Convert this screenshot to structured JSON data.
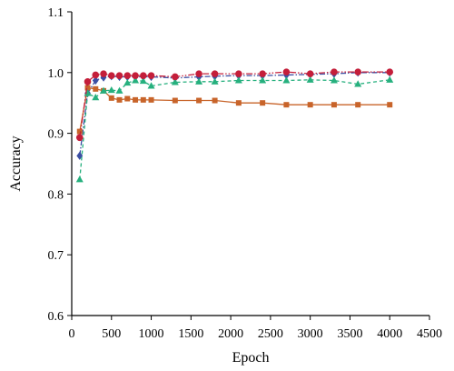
{
  "chart_data": {
    "type": "line",
    "xlabel": "Epoch",
    "ylabel": "Accuracy",
    "xlim": [
      0,
      4500
    ],
    "ylim": [
      0.6,
      1.1
    ],
    "xticks": [
      0,
      500,
      1000,
      1500,
      2000,
      2500,
      3000,
      3500,
      4000,
      4500
    ],
    "yticks": [
      0.6,
      0.7,
      0.8,
      0.9,
      1.0,
      1.1
    ],
    "xtick_labels": [
      "0",
      "500",
      "1000",
      "1500",
      "2000",
      "2500",
      "3000",
      "3500",
      "4000",
      "4500"
    ],
    "ytick_labels": [
      "0.6",
      "0.7",
      "0.8",
      "0.9",
      "1.0",
      "1.1"
    ],
    "grid": false,
    "series": [
      {
        "color": "#3b4ea3",
        "marker": "diamond",
        "dash": "6,2,1.5,2",
        "x": [
          100,
          200,
          300,
          400,
          500,
          600,
          700,
          800,
          900,
          1000,
          1300,
          1600,
          1800,
          2100,
          2400,
          2700,
          3000,
          3300,
          3600,
          4000
        ],
        "y": [
          0.863,
          0.966,
          0.987,
          0.992,
          0.994,
          0.993,
          0.993,
          0.993,
          0.993,
          0.993,
          0.991,
          0.993,
          0.994,
          0.995,
          0.995,
          0.996,
          0.997,
          0.998,
          1.0,
          1.0
        ]
      },
      {
        "color": "#c8642a",
        "marker": "square",
        "dash": "",
        "x": [
          100,
          200,
          300,
          400,
          500,
          600,
          700,
          800,
          900,
          1000,
          1300,
          1600,
          1800,
          2100,
          2400,
          2700,
          3000,
          3300,
          3600,
          4000
        ],
        "y": [
          0.903,
          0.975,
          0.973,
          0.97,
          0.958,
          0.955,
          0.957,
          0.955,
          0.955,
          0.955,
          0.954,
          0.954,
          0.954,
          0.95,
          0.95,
          0.947,
          0.947,
          0.947,
          0.947,
          0.947
        ]
      },
      {
        "color": "#26b07e",
        "marker": "triangle",
        "dash": "4,3",
        "x": [
          100,
          200,
          300,
          400,
          500,
          600,
          700,
          800,
          900,
          1000,
          1300,
          1600,
          1800,
          2100,
          2400,
          2700,
          3000,
          3300,
          3600,
          4000
        ],
        "y": [
          0.824,
          0.966,
          0.959,
          0.97,
          0.971,
          0.97,
          0.983,
          0.987,
          0.986,
          0.978,
          0.984,
          0.985,
          0.985,
          0.987,
          0.987,
          0.987,
          0.988,
          0.987,
          0.981,
          0.988
        ]
      },
      {
        "color": "#c41e3a",
        "marker": "circle",
        "dash": "7,2,1.5,2,1.5,2",
        "x": [
          100,
          200,
          300,
          400,
          500,
          600,
          700,
          800,
          900,
          1000,
          1300,
          1600,
          1800,
          2100,
          2400,
          2700,
          3000,
          3300,
          3600,
          4000
        ],
        "y": [
          0.893,
          0.985,
          0.996,
          0.998,
          0.995,
          0.995,
          0.995,
          0.995,
          0.995,
          0.995,
          0.993,
          0.998,
          0.998,
          0.998,
          0.998,
          1.001,
          0.998,
          1.001,
          1.001,
          1.001
        ]
      }
    ]
  }
}
